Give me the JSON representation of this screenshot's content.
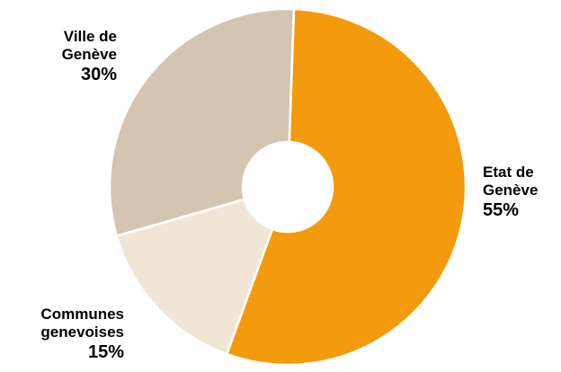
{
  "chart_data": {
    "type": "pie",
    "title": "",
    "slices": [
      {
        "label_line1": "Etat de",
        "label_line2": "Genève",
        "value": 55,
        "value_label": "55%",
        "color": "#f39a0d"
      },
      {
        "label_line1": "Communes",
        "label_line2": "genevoises",
        "value": 15,
        "value_label": "15%",
        "color": "#f1e5d5"
      },
      {
        "label_line1": "Ville de",
        "label_line2": "Genève",
        "value": 30,
        "value_label": "30%",
        "color": "#d4c4b2"
      }
    ],
    "donut": true,
    "legend": "none"
  }
}
